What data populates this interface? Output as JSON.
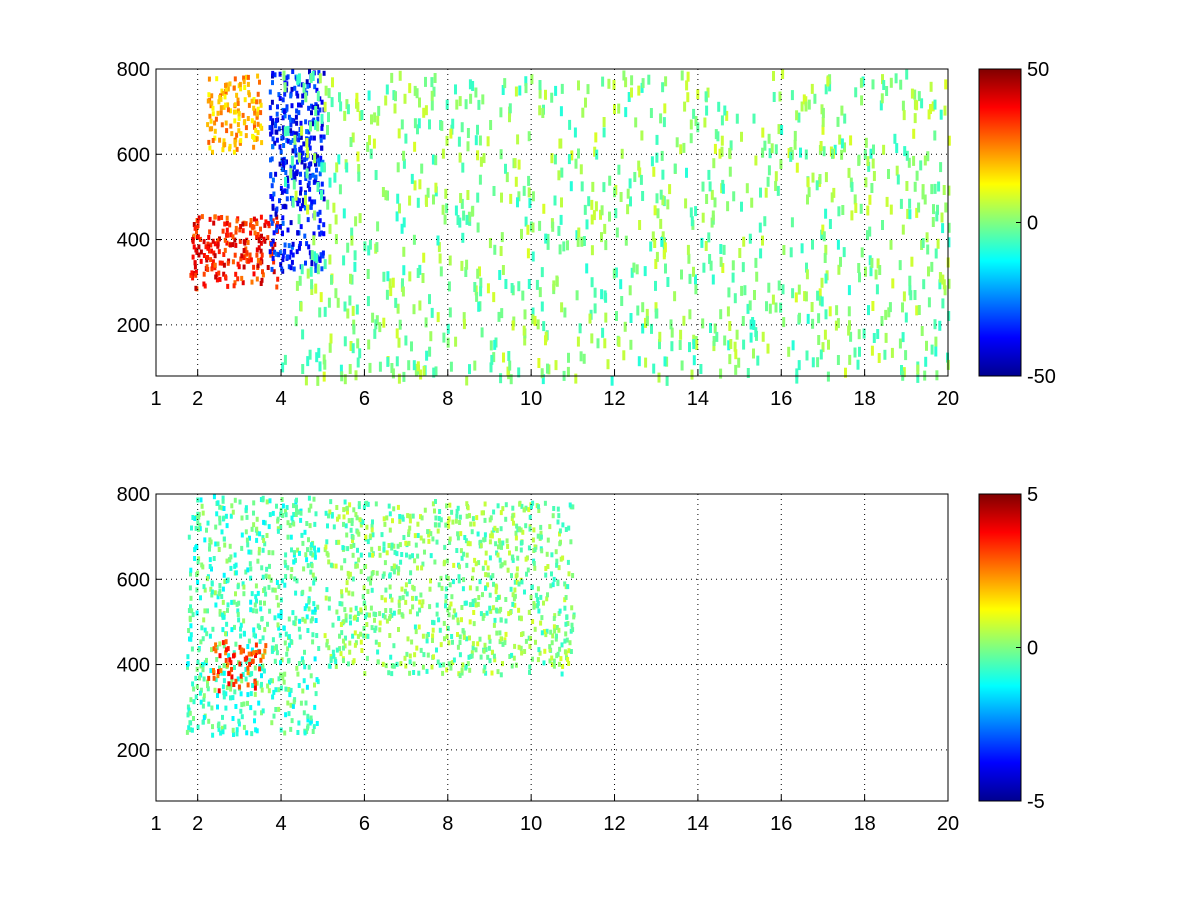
{
  "chart_data": [
    {
      "type": "heatmap",
      "title": "",
      "xlabel": "",
      "ylabel": "",
      "xlim": [
        1,
        20
      ],
      "ylim": [
        80,
        800
      ],
      "x_ticks": [
        1,
        2,
        4,
        6,
        8,
        10,
        12,
        14,
        16,
        18,
        20
      ],
      "x_tick_labels": [
        "1",
        "2",
        "4",
        "6",
        "8",
        "10",
        "12",
        "14",
        "16",
        "18",
        "20"
      ],
      "y_ticks": [
        200,
        400,
        600,
        800
      ],
      "y_tick_labels": [
        "200",
        "400",
        "600",
        "800"
      ],
      "grid": true,
      "colormap": "jet",
      "clim": [
        -50,
        50
      ],
      "colorbar_ticks": [
        -50,
        0,
        50
      ],
      "colorbar_tick_labels": [
        "-50",
        "0",
        "50"
      ],
      "features": [
        {
          "x": [
            1.8,
            3.9
          ],
          "y": [
            290,
            460
          ],
          "level": 35,
          "description": "high ridge"
        },
        {
          "x": [
            2.2,
            3.5
          ],
          "y": [
            610,
            790
          ],
          "level": 20,
          "description": "upper positive band"
        },
        {
          "x": [
            3.7,
            5.0
          ],
          "y": [
            330,
            800
          ],
          "level": -35,
          "description": "negative band"
        },
        {
          "x": [
            4.0,
            20
          ],
          "y": [
            80,
            800
          ],
          "level": 0,
          "description": "sparse near-zero speckle"
        }
      ]
    },
    {
      "type": "heatmap",
      "title": "",
      "xlabel": "",
      "ylabel": "",
      "xlim": [
        1,
        20
      ],
      "ylim": [
        80,
        800
      ],
      "x_ticks": [
        1,
        2,
        4,
        6,
        8,
        10,
        12,
        14,
        16,
        18,
        20
      ],
      "x_tick_labels": [
        "1",
        "2",
        "4",
        "6",
        "8",
        "10",
        "12",
        "14",
        "16",
        "18",
        "20"
      ],
      "y_ticks": [
        200,
        400,
        600,
        800
      ],
      "y_tick_labels": [
        "200",
        "400",
        "600",
        "800"
      ],
      "grid": true,
      "colormap": "jet",
      "clim": [
        -5,
        5
      ],
      "colorbar_ticks": [
        -5,
        0,
        5
      ],
      "colorbar_tick_labels": [
        "-5",
        "0",
        "5"
      ],
      "features": [
        {
          "x": [
            1.7,
            4.9
          ],
          "y": [
            240,
            800
          ],
          "level": -0.5,
          "description": "main cluster"
        },
        {
          "x": [
            2.2,
            3.6
          ],
          "y": [
            340,
            460
          ],
          "level": 3,
          "description": "positive streak"
        },
        {
          "x": [
            5.0,
            11
          ],
          "y": [
            380,
            790
          ],
          "level": 0,
          "description": "isolated points"
        }
      ]
    }
  ]
}
